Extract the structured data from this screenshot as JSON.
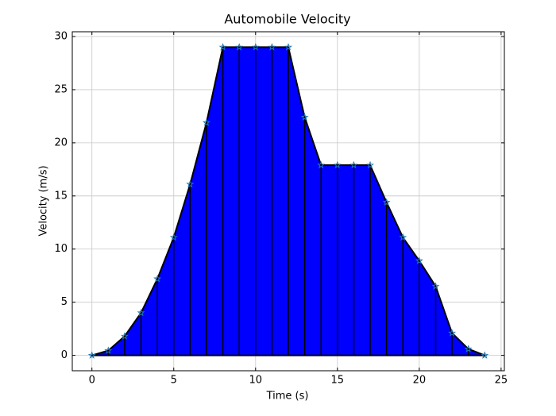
{
  "chart_data": {
    "type": "area",
    "title": "Automobile Velocity",
    "xlabel": "Time (s)",
    "ylabel": "Velocity (m/s)",
    "x": [
      0,
      1,
      2,
      3,
      4,
      5,
      6,
      7,
      8,
      9,
      10,
      11,
      12,
      13,
      14,
      15,
      16,
      17,
      18,
      19,
      20,
      21,
      22,
      23,
      24
    ],
    "values": [
      0,
      0.45,
      1.8,
      4.0,
      7.2,
      11.1,
      16.1,
      21.9,
      29,
      29,
      29,
      29,
      29,
      22.4,
      17.9,
      17.9,
      17.9,
      17.9,
      14.4,
      11.1,
      8.9,
      6.5,
      2.1,
      0.6,
      0
    ],
    "color": "#0000ff",
    "edge_color": "#000000",
    "marker_color": "#1f77b4",
    "xlim": [
      -1.2,
      25.2
    ],
    "xticks": [
      0,
      5,
      10,
      15,
      20,
      25
    ],
    "ylim": [
      -1.45,
      30.45
    ],
    "yticks": [
      0,
      5,
      10,
      15,
      20,
      25,
      30
    ],
    "grid": true
  }
}
